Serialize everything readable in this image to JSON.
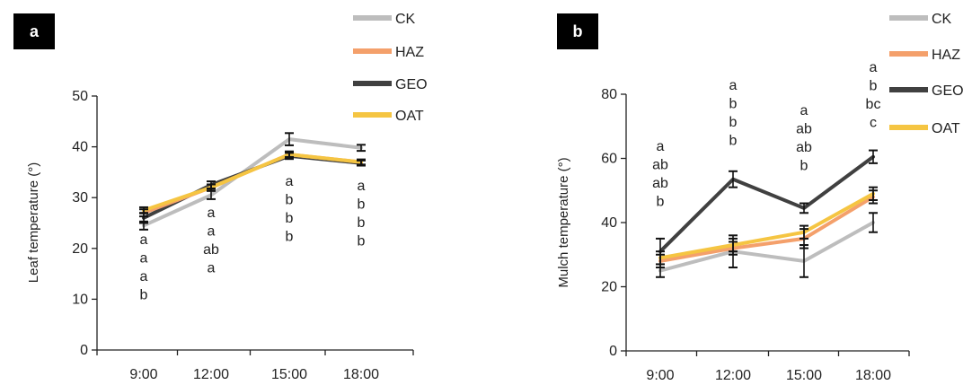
{
  "charts": [
    {
      "panel_label": "a",
      "chart_data": {
        "type": "line",
        "categories": [
          "9:00",
          "12:00",
          "15:00",
          "18:00"
        ],
        "ylabel": "Leaf temperature (°)",
        "xlabel": "",
        "ylim": [
          0,
          50
        ],
        "yticks": [
          0,
          10,
          20,
          30,
          40,
          50
        ],
        "legend_position": "top-right",
        "grid": false,
        "series": [
          {
            "name": "CK",
            "color": "#bdbdbd",
            "values": [
              24.5,
              30.5,
              41.5,
              39.8
            ],
            "errors": [
              0.8,
              0.8,
              1.2,
              0.6
            ]
          },
          {
            "name": "HAZ",
            "color": "#f4a06b",
            "values": [
              27,
              32,
              38.5,
              37
            ],
            "errors": [
              0.7,
              0.6,
              0.6,
              0.5
            ]
          },
          {
            "name": "GEO",
            "color": "#404040",
            "values": [
              26,
              32.5,
              38.2,
              36.8
            ],
            "errors": [
              1.0,
              0.7,
              0.6,
              0.5
            ]
          },
          {
            "name": "OAT",
            "color": "#f5c542",
            "values": [
              27.5,
              32,
              38.5,
              37
            ],
            "errors": [
              0.6,
              0.6,
              0.5,
              0.5
            ]
          }
        ],
        "annotations": [
          {
            "category": "9:00",
            "letters": [
              "a",
              "a",
              "a",
              "b"
            ]
          },
          {
            "category": "12:00",
            "letters": [
              "a",
              "a",
              "ab",
              "a"
            ]
          },
          {
            "category": "15:00",
            "letters": [
              "a",
              "b",
              "b",
              "b"
            ]
          },
          {
            "category": "18:00",
            "letters": [
              "a",
              "b",
              "b",
              "b"
            ]
          }
        ]
      }
    },
    {
      "panel_label": "b",
      "chart_data": {
        "type": "line",
        "categories": [
          "9:00",
          "12:00",
          "15:00",
          "18:00"
        ],
        "ylabel": "Mulch temperature (°)",
        "xlabel": "",
        "ylim": [
          0,
          80
        ],
        "yticks": [
          0,
          20,
          40,
          60,
          80
        ],
        "legend_position": "top-right",
        "grid": false,
        "series": [
          {
            "name": "CK",
            "color": "#bdbdbd",
            "values": [
              25,
              31,
              28,
              40
            ],
            "errors": [
              2,
              5,
              5,
              3
            ]
          },
          {
            "name": "HAZ",
            "color": "#f4a06b",
            "values": [
              28,
              32,
              35,
              48
            ],
            "errors": [
              2,
              2,
              3,
              2
            ]
          },
          {
            "name": "GEO",
            "color": "#404040",
            "values": [
              31,
              53.5,
              44.5,
              60.5
            ],
            "errors": [
              4,
              2.5,
              1.5,
              2
            ]
          },
          {
            "name": "OAT",
            "color": "#f5c542",
            "values": [
              29,
              33,
              37,
              49
            ],
            "errors": [
              2,
              2,
              2,
              2
            ]
          }
        ],
        "annotations": [
          {
            "category": "9:00",
            "letters": [
              "a",
              "ab",
              "ab",
              "b"
            ]
          },
          {
            "category": "12:00",
            "letters": [
              "a",
              "b",
              "b",
              "b"
            ]
          },
          {
            "category": "15:00",
            "letters": [
              "a",
              "ab",
              "ab",
              "b"
            ]
          },
          {
            "category": "18:00",
            "letters": [
              "a",
              "b",
              "bc",
              "c"
            ]
          }
        ]
      }
    }
  ]
}
